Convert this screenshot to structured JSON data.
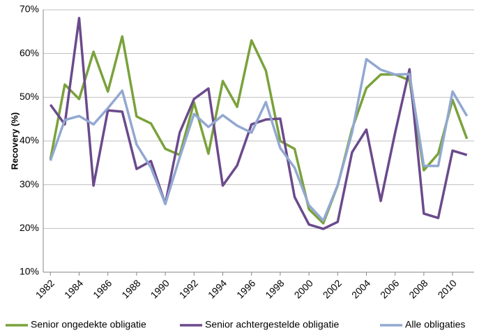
{
  "chart_data": {
    "type": "line",
    "y_label": "Recovery (%)",
    "x": [
      1982,
      1983,
      1984,
      1985,
      1986,
      1987,
      1988,
      1989,
      1990,
      1991,
      1992,
      1993,
      1994,
      1995,
      1996,
      1997,
      1998,
      1999,
      2000,
      2001,
      2002,
      2003,
      2004,
      2005,
      2006,
      2007,
      2008,
      2009,
      2010,
      2011
    ],
    "xlim": [
      1981.5,
      2011.5
    ],
    "xticks": [
      1982,
      1984,
      1986,
      1988,
      1990,
      1992,
      1994,
      1996,
      1998,
      2000,
      2002,
      2004,
      2006,
      2008,
      2010
    ],
    "ylim": [
      10,
      70
    ],
    "yticks": [
      {
        "value": 10,
        "label": "10%"
      },
      {
        "value": 20,
        "label": "20%"
      },
      {
        "value": 30,
        "label": "30%"
      },
      {
        "value": 40,
        "label": "40%"
      },
      {
        "value": 50,
        "label": "50%"
      },
      {
        "value": 60,
        "label": "60%"
      },
      {
        "value": 70,
        "label": "70%"
      }
    ],
    "grid": true,
    "legend": "bottom",
    "series": [
      {
        "name": "Senior ongedekte obligatie",
        "color": "#7aa23b",
        "values": [
          35.8,
          52.9,
          49.6,
          60.4,
          51.3,
          63.9,
          45.6,
          44.0,
          38.2,
          36.8,
          48.8,
          37.1,
          53.7,
          47.8,
          63.0,
          56.1,
          40.0,
          38.2,
          24.4,
          21.2,
          29.8,
          42.7,
          52.1,
          55.2,
          55.2,
          53.9,
          33.3,
          37.1,
          49.4,
          40.5
        ]
      },
      {
        "name": "Senior achtergestelde obligatie",
        "color": "#6b4a8c",
        "values": [
          48.3,
          43.8,
          68.1,
          29.8,
          47.0,
          46.7,
          33.6,
          35.4,
          25.6,
          41.9,
          49.6,
          52.0,
          29.8,
          34.4,
          43.8,
          44.9,
          45.1,
          27.2,
          20.9,
          19.9,
          21.5,
          37.4,
          42.6,
          26.3,
          41.9,
          56.4,
          23.4,
          22.4,
          37.8,
          36.8
        ]
      },
      {
        "name": "Alle obligaties",
        "color": "#92a8d1",
        "values": [
          35.5,
          44.8,
          45.7,
          43.8,
          47.5,
          51.5,
          39.2,
          33.9,
          25.6,
          36.2,
          46.2,
          43.2,
          45.9,
          43.5,
          41.9,
          48.9,
          38.4,
          33.9,
          25.3,
          21.8,
          29.9,
          41.9,
          58.7,
          56.3,
          55.2,
          55.3,
          34.3,
          34.3,
          51.3,
          45.7
        ]
      }
    ]
  }
}
